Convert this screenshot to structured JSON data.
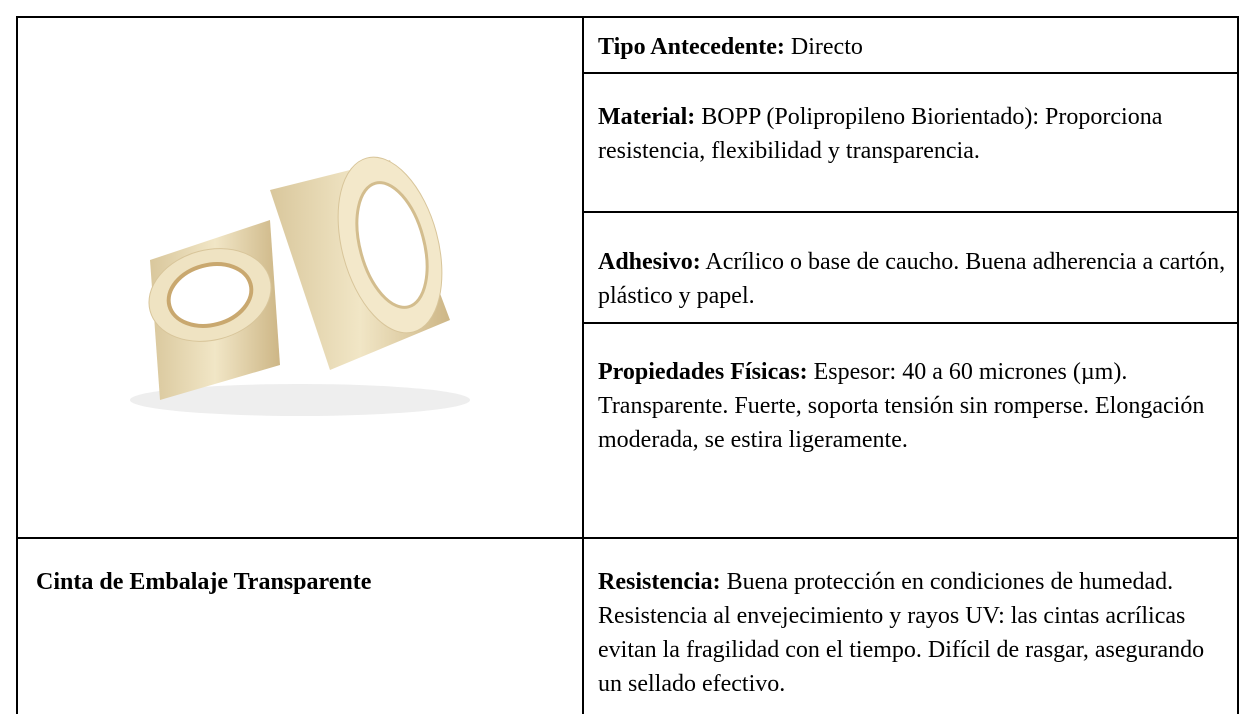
{
  "table": {
    "details": [
      {
        "label": "Tipo Antecedente:",
        "text": "Directo"
      },
      {
        "label": "Material:",
        "text": "BOPP (Polipropileno Biorientado): Proporciona resistencia, flexibilidad y transparencia."
      },
      {
        "label": "Adhesivo:",
        "text": "Acrílico o base de caucho. Buena adherencia a cartón, plástico y papel."
      },
      {
        "label": "Propiedades Físicas:",
        "text": "Espesor: 40 a 60 micrones (µm). Transparente. Fuerte, soporta tensión sin romperse. Elongación moderada, se estira ligeramente."
      }
    ],
    "product": {
      "name": "Cinta de Embalaje Transparente",
      "detail": {
        "label": "Resistencia:",
        "text": "Buena protección en condiciones de humedad. Resistencia al envejecimiento y rayos UV: las cintas acrílicas evitan la fragilidad con el tiempo. Difícil de rasgar, asegurando un sellado efectivo."
      }
    }
  }
}
